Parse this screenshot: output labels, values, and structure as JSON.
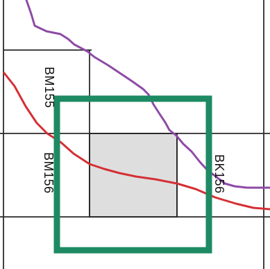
{
  "map": {
    "labels": {
      "bm155": "BM155",
      "bm156": "BM156",
      "bk156": "BK156"
    },
    "colors": {
      "background": "#ffffff",
      "grid_line": "#2a2a2a",
      "purple_route": "#8e4aa6",
      "red_route": "#d52f34",
      "selection_box": "#1d8a63",
      "highlight_fill": "#dedede",
      "label_text": "#111111"
    }
  }
}
